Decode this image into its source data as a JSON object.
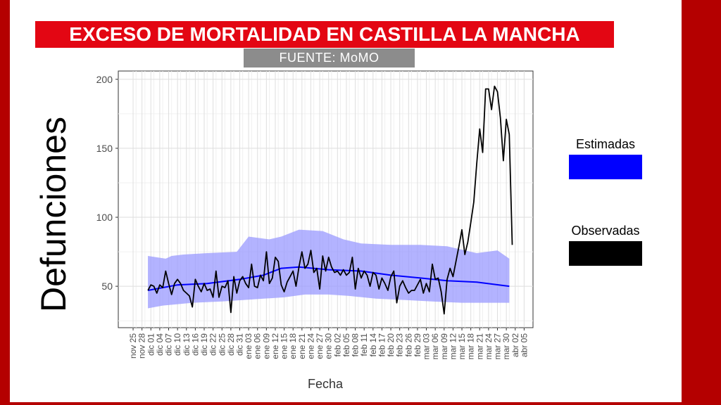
{
  "title": "EXCESO DE MORTALIDAD EN CASTILLA LA MANCHA",
  "source": "FUENTE: MoMO",
  "colors": {
    "frame": "#b40000",
    "title_bg": "#e30613",
    "source_bg": "#8c8c8c",
    "estimated": "#0000ff",
    "band": "#9999ff",
    "observed": "#000000"
  },
  "legend": [
    {
      "label": "Estimadas",
      "color": "#0000ff"
    },
    {
      "label": "Observadas",
      "color": "#000000"
    }
  ],
  "chart_data": {
    "type": "line",
    "xlabel": "Fecha",
    "ylabel": "Defunciones",
    "ylim": [
      20,
      206
    ],
    "xlim_days": [
      "2019-11-20",
      "2020-04-08"
    ],
    "yticks": [
      50,
      100,
      150,
      200
    ],
    "xtick_labels": [
      "nov 25",
      "nov 28",
      "dic 01",
      "dic 04",
      "dic 07",
      "dic 10",
      "dic 13",
      "dic 16",
      "dic 19",
      "dic 22",
      "dic 25",
      "dic 28",
      "dic 31",
      "ene 03",
      "ene 06",
      "ene 09",
      "ene 12",
      "ene 15",
      "ene 18",
      "ene 21",
      "ene 24",
      "ene 27",
      "ene 30",
      "feb 02",
      "feb 05",
      "feb 08",
      "feb 11",
      "feb 14",
      "feb 17",
      "feb 20",
      "feb 23",
      "feb 26",
      "feb 29",
      "mar 03",
      "mar 06",
      "mar 09",
      "mar 12",
      "mar 15",
      "mar 18",
      "mar 21",
      "mar 24",
      "mar 27",
      "mar 30",
      "abr 02",
      "abr 05"
    ],
    "xtick_dates": [
      "2019-11-25",
      "2019-11-28",
      "2019-12-01",
      "2019-12-04",
      "2019-12-07",
      "2019-12-10",
      "2019-12-13",
      "2019-12-16",
      "2019-12-19",
      "2019-12-22",
      "2019-12-25",
      "2019-12-28",
      "2019-12-31",
      "2020-01-03",
      "2020-01-06",
      "2020-01-09",
      "2020-01-12",
      "2020-01-15",
      "2020-01-18",
      "2020-01-21",
      "2020-01-24",
      "2020-01-27",
      "2020-01-30",
      "2020-02-02",
      "2020-02-05",
      "2020-02-08",
      "2020-02-11",
      "2020-02-14",
      "2020-02-17",
      "2020-02-20",
      "2020-02-23",
      "2020-02-26",
      "2020-02-29",
      "2020-03-03",
      "2020-03-06",
      "2020-03-09",
      "2020-03-12",
      "2020-03-15",
      "2020-03-18",
      "2020-03-21",
      "2020-03-24",
      "2020-03-27",
      "2020-03-30",
      "2020-04-02",
      "2020-04-05"
    ],
    "grid": true,
    "legend_position": "right",
    "series": [
      {
        "name": "Estimadas",
        "color": "#0000ff",
        "points": [
          [
            "2019-11-30",
            47
          ],
          [
            "2019-12-10",
            51
          ],
          [
            "2019-12-20",
            52
          ],
          [
            "2019-12-31",
            55
          ],
          [
            "2020-01-08",
            58
          ],
          [
            "2020-01-14",
            63
          ],
          [
            "2020-01-20",
            64
          ],
          [
            "2020-01-30",
            62
          ],
          [
            "2020-02-10",
            61
          ],
          [
            "2020-02-20",
            58
          ],
          [
            "2020-03-01",
            56
          ],
          [
            "2020-03-10",
            54
          ],
          [
            "2020-03-20",
            53
          ],
          [
            "2020-03-31",
            50
          ]
        ]
      },
      {
        "name": "Observadas",
        "color": "#000000",
        "points": [
          [
            "2019-11-30",
            47
          ],
          [
            "2019-12-01",
            51
          ],
          [
            "2019-12-02",
            50
          ],
          [
            "2019-12-03",
            45
          ],
          [
            "2019-12-04",
            51
          ],
          [
            "2019-12-05",
            49
          ],
          [
            "2019-12-06",
            61
          ],
          [
            "2019-12-07",
            52
          ],
          [
            "2019-12-08",
            44
          ],
          [
            "2019-12-09",
            52
          ],
          [
            "2019-12-10",
            55
          ],
          [
            "2019-12-11",
            52
          ],
          [
            "2019-12-12",
            47
          ],
          [
            "2019-12-13",
            45
          ],
          [
            "2019-12-14",
            43
          ],
          [
            "2019-12-15",
            35
          ],
          [
            "2019-12-16",
            55
          ],
          [
            "2019-12-17",
            50
          ],
          [
            "2019-12-18",
            46
          ],
          [
            "2019-12-19",
            52
          ],
          [
            "2019-12-20",
            47
          ],
          [
            "2019-12-21",
            48
          ],
          [
            "2019-12-22",
            42
          ],
          [
            "2019-12-23",
            61
          ],
          [
            "2019-12-24",
            42
          ],
          [
            "2019-12-25",
            50
          ],
          [
            "2019-12-26",
            49
          ],
          [
            "2019-12-27",
            54
          ],
          [
            "2019-12-28",
            31
          ],
          [
            "2019-12-29",
            57
          ],
          [
            "2019-12-30",
            45
          ],
          [
            "2019-12-31",
            54
          ],
          [
            "2020-01-01",
            57
          ],
          [
            "2020-01-02",
            52
          ],
          [
            "2020-01-03",
            49
          ],
          [
            "2020-01-04",
            66
          ],
          [
            "2020-01-05",
            50
          ],
          [
            "2020-01-06",
            49
          ],
          [
            "2020-01-07",
            58
          ],
          [
            "2020-01-08",
            54
          ],
          [
            "2020-01-09",
            75
          ],
          [
            "2020-01-10",
            52
          ],
          [
            "2020-01-11",
            56
          ],
          [
            "2020-01-12",
            71
          ],
          [
            "2020-01-13",
            68
          ],
          [
            "2020-01-14",
            51
          ],
          [
            "2020-01-15",
            46
          ],
          [
            "2020-01-16",
            53
          ],
          [
            "2020-01-17",
            57
          ],
          [
            "2020-01-18",
            61
          ],
          [
            "2020-01-19",
            50
          ],
          [
            "2020-01-20",
            64
          ],
          [
            "2020-01-21",
            75
          ],
          [
            "2020-01-22",
            63
          ],
          [
            "2020-01-23",
            66
          ],
          [
            "2020-01-24",
            76
          ],
          [
            "2020-01-25",
            60
          ],
          [
            "2020-01-26",
            63
          ],
          [
            "2020-01-27",
            48
          ],
          [
            "2020-01-28",
            72
          ],
          [
            "2020-01-29",
            61
          ],
          [
            "2020-01-30",
            71
          ],
          [
            "2020-01-31",
            64
          ],
          [
            "2020-02-01",
            60
          ],
          [
            "2020-02-02",
            61
          ],
          [
            "2020-02-03",
            58
          ],
          [
            "2020-02-04",
            62
          ],
          [
            "2020-02-05",
            58
          ],
          [
            "2020-02-06",
            60
          ],
          [
            "2020-02-07",
            71
          ],
          [
            "2020-02-08",
            48
          ],
          [
            "2020-02-09",
            63
          ],
          [
            "2020-02-10",
            56
          ],
          [
            "2020-02-11",
            61
          ],
          [
            "2020-02-12",
            58
          ],
          [
            "2020-02-13",
            50
          ],
          [
            "2020-02-14",
            60
          ],
          [
            "2020-02-15",
            58
          ],
          [
            "2020-02-16",
            48
          ],
          [
            "2020-02-17",
            56
          ],
          [
            "2020-02-18",
            52
          ],
          [
            "2020-02-19",
            47
          ],
          [
            "2020-02-20",
            57
          ],
          [
            "2020-02-21",
            61
          ],
          [
            "2020-02-22",
            38
          ],
          [
            "2020-02-23",
            50
          ],
          [
            "2020-02-24",
            54
          ],
          [
            "2020-02-25",
            49
          ],
          [
            "2020-02-26",
            45
          ],
          [
            "2020-02-27",
            47
          ],
          [
            "2020-02-28",
            47
          ],
          [
            "2020-03-01",
            55
          ],
          [
            "2020-03-02",
            45
          ],
          [
            "2020-03-03",
            52
          ],
          [
            "2020-03-04",
            46
          ],
          [
            "2020-03-05",
            66
          ],
          [
            "2020-03-06",
            55
          ],
          [
            "2020-03-07",
            56
          ],
          [
            "2020-03-08",
            46
          ],
          [
            "2020-03-09",
            30
          ],
          [
            "2020-03-10",
            55
          ],
          [
            "2020-03-11",
            63
          ],
          [
            "2020-03-12",
            57
          ],
          [
            "2020-03-13",
            68
          ],
          [
            "2020-03-14",
            79
          ],
          [
            "2020-03-15",
            91
          ],
          [
            "2020-03-16",
            73
          ],
          [
            "2020-03-17",
            82
          ],
          [
            "2020-03-18",
            96
          ],
          [
            "2020-03-19",
            111
          ],
          [
            "2020-03-20",
            139
          ],
          [
            "2020-03-21",
            164
          ],
          [
            "2020-03-22",
            147
          ],
          [
            "2020-03-23",
            193
          ],
          [
            "2020-03-24",
            193
          ],
          [
            "2020-03-25",
            178
          ],
          [
            "2020-03-26",
            195
          ],
          [
            "2020-03-27",
            191
          ],
          [
            "2020-03-28",
            172
          ],
          [
            "2020-03-29",
            141
          ],
          [
            "2020-03-30",
            171
          ],
          [
            "2020-03-31",
            160
          ],
          [
            "2020-04-01",
            80
          ]
        ]
      }
    ],
    "band": {
      "color": "#9999ff",
      "upper": [
        [
          "2019-11-30",
          72
        ],
        [
          "2019-12-06",
          70
        ],
        [
          "2019-12-08",
          72
        ],
        [
          "2019-12-12",
          73
        ],
        [
          "2019-12-20",
          74
        ],
        [
          "2019-12-30",
          75
        ],
        [
          "2020-01-03",
          86
        ],
        [
          "2020-01-10",
          84
        ],
        [
          "2020-01-14",
          86
        ],
        [
          "2020-01-20",
          91
        ],
        [
          "2020-01-28",
          90
        ],
        [
          "2020-02-04",
          84
        ],
        [
          "2020-02-10",
          81
        ],
        [
          "2020-02-20",
          80
        ],
        [
          "2020-03-01",
          80
        ],
        [
          "2020-03-10",
          79
        ],
        [
          "2020-03-20",
          74
        ],
        [
          "2020-03-27",
          76
        ],
        [
          "2020-03-31",
          70
        ]
      ],
      "lower": [
        [
          "2019-11-30",
          34
        ],
        [
          "2019-12-05",
          36
        ],
        [
          "2019-12-15",
          38
        ],
        [
          "2019-12-25",
          39
        ],
        [
          "2020-01-01",
          40
        ],
        [
          "2020-01-08",
          41
        ],
        [
          "2020-01-15",
          42
        ],
        [
          "2020-01-22",
          44
        ],
        [
          "2020-01-30",
          44
        ],
        [
          "2020-02-06",
          43
        ],
        [
          "2020-02-15",
          41
        ],
        [
          "2020-02-25",
          40
        ],
        [
          "2020-03-05",
          39
        ],
        [
          "2020-03-15",
          38
        ],
        [
          "2020-03-25",
          38
        ],
        [
          "2020-03-31",
          38
        ]
      ]
    }
  }
}
